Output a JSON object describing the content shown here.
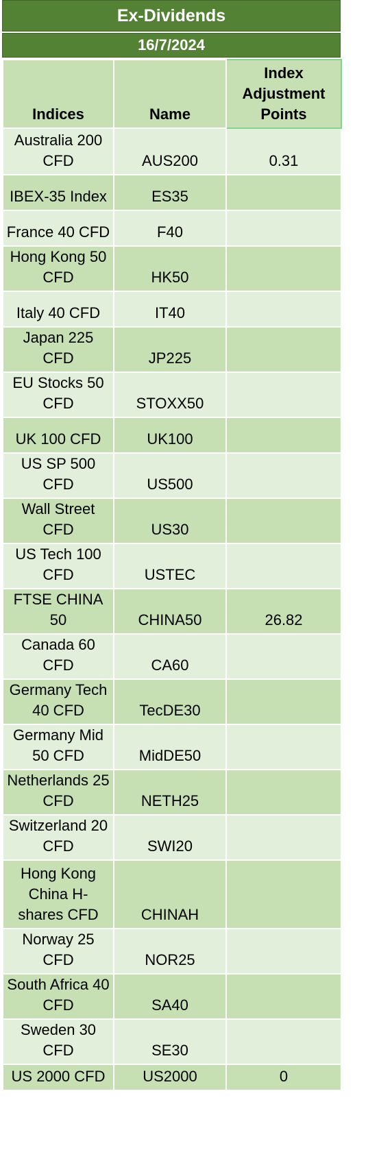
{
  "header": {
    "title": "Ex-Dividends",
    "date": "16/7/2024"
  },
  "table": {
    "columns": [
      "Indices",
      "Name",
      "Index Adjustment Points"
    ],
    "rows": [
      {
        "index": "Australia 200 CFD",
        "name": "AUS200",
        "points": "0.31"
      },
      {
        "index": "IBEX-35 Index",
        "name": "ES35",
        "points": ""
      },
      {
        "index": "France 40 CFD",
        "name": "F40",
        "points": ""
      },
      {
        "index": "Hong Kong 50 CFD",
        "name": "HK50",
        "points": ""
      },
      {
        "index": "Italy 40 CFD",
        "name": "IT40",
        "points": ""
      },
      {
        "index": "Japan 225 CFD",
        "name": "JP225",
        "points": ""
      },
      {
        "index": "EU Stocks 50 CFD",
        "name": "STOXX50",
        "points": ""
      },
      {
        "index": "UK 100 CFD",
        "name": "UK100",
        "points": ""
      },
      {
        "index": "US SP 500 CFD",
        "name": "US500",
        "points": ""
      },
      {
        "index": "Wall Street CFD",
        "name": "US30",
        "points": ""
      },
      {
        "index": "US Tech 100 CFD",
        "name": "USTEC",
        "points": ""
      },
      {
        "index": "FTSE CHINA 50",
        "name": "CHINA50",
        "points": "26.82"
      },
      {
        "index": "Canada 60 CFD",
        "name": "CA60",
        "points": ""
      },
      {
        "index": "Germany Tech 40 CFD",
        "name": "TecDE30",
        "points": ""
      },
      {
        "index": "Germany Mid 50 CFD",
        "name": "MidDE50",
        "points": ""
      },
      {
        "index": "Netherlands 25 CFD",
        "name": "NETH25",
        "points": ""
      },
      {
        "index": "Switzerland 20 CFD",
        "name": "SWI20",
        "points": ""
      },
      {
        "index": "Hong Kong China H-shares CFD",
        "name": "CHINAH",
        "points": ""
      },
      {
        "index": "Norway 25 CFD",
        "name": "NOR25",
        "points": ""
      },
      {
        "index": "South Africa 40 CFD",
        "name": "SA40",
        "points": ""
      },
      {
        "index": "Sweden 30 CFD",
        "name": "SE30",
        "points": ""
      },
      {
        "index": "US 2000 CFD",
        "name": "US2000",
        "points": "0"
      }
    ]
  },
  "colors": {
    "banner": "#548235",
    "row_light": "#e2efda",
    "row_dark": "#c6e0b4",
    "header_highlight_border": "#7fd68a"
  }
}
